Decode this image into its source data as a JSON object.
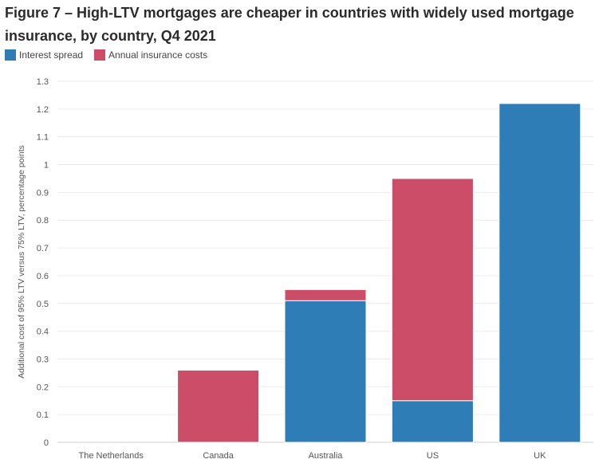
{
  "chart_data": {
    "type": "bar",
    "stacked": true,
    "title": "Figure 7 – High-LTV mortgages are cheaper in countries with widely used mortgage insurance, by country, Q4 2021",
    "xlabel": "",
    "ylabel": "Additional cost of 95% LTV versus 75% LTV, percentage points",
    "ylim": [
      0,
      1.3
    ],
    "yticks": [
      "0",
      "0.1",
      "0.2",
      "0.3",
      "0.4",
      "0.5",
      "0.6",
      "0.7",
      "0.8",
      "0.9",
      "1",
      "1.1",
      "1.2",
      "1.3"
    ],
    "categories": [
      "The Netherlands",
      "Canada",
      "Australia",
      "US",
      "UK"
    ],
    "series": [
      {
        "name": "Interest spread",
        "color": "#2e7db6",
        "values": [
          0,
          0,
          0.51,
          0.15,
          1.22
        ]
      },
      {
        "name": "Annual insurance costs",
        "color": "#cc4d68",
        "values": [
          0,
          0.26,
          0.04,
          0.8,
          0
        ]
      }
    ],
    "grid": true,
    "legend": "top-left"
  }
}
